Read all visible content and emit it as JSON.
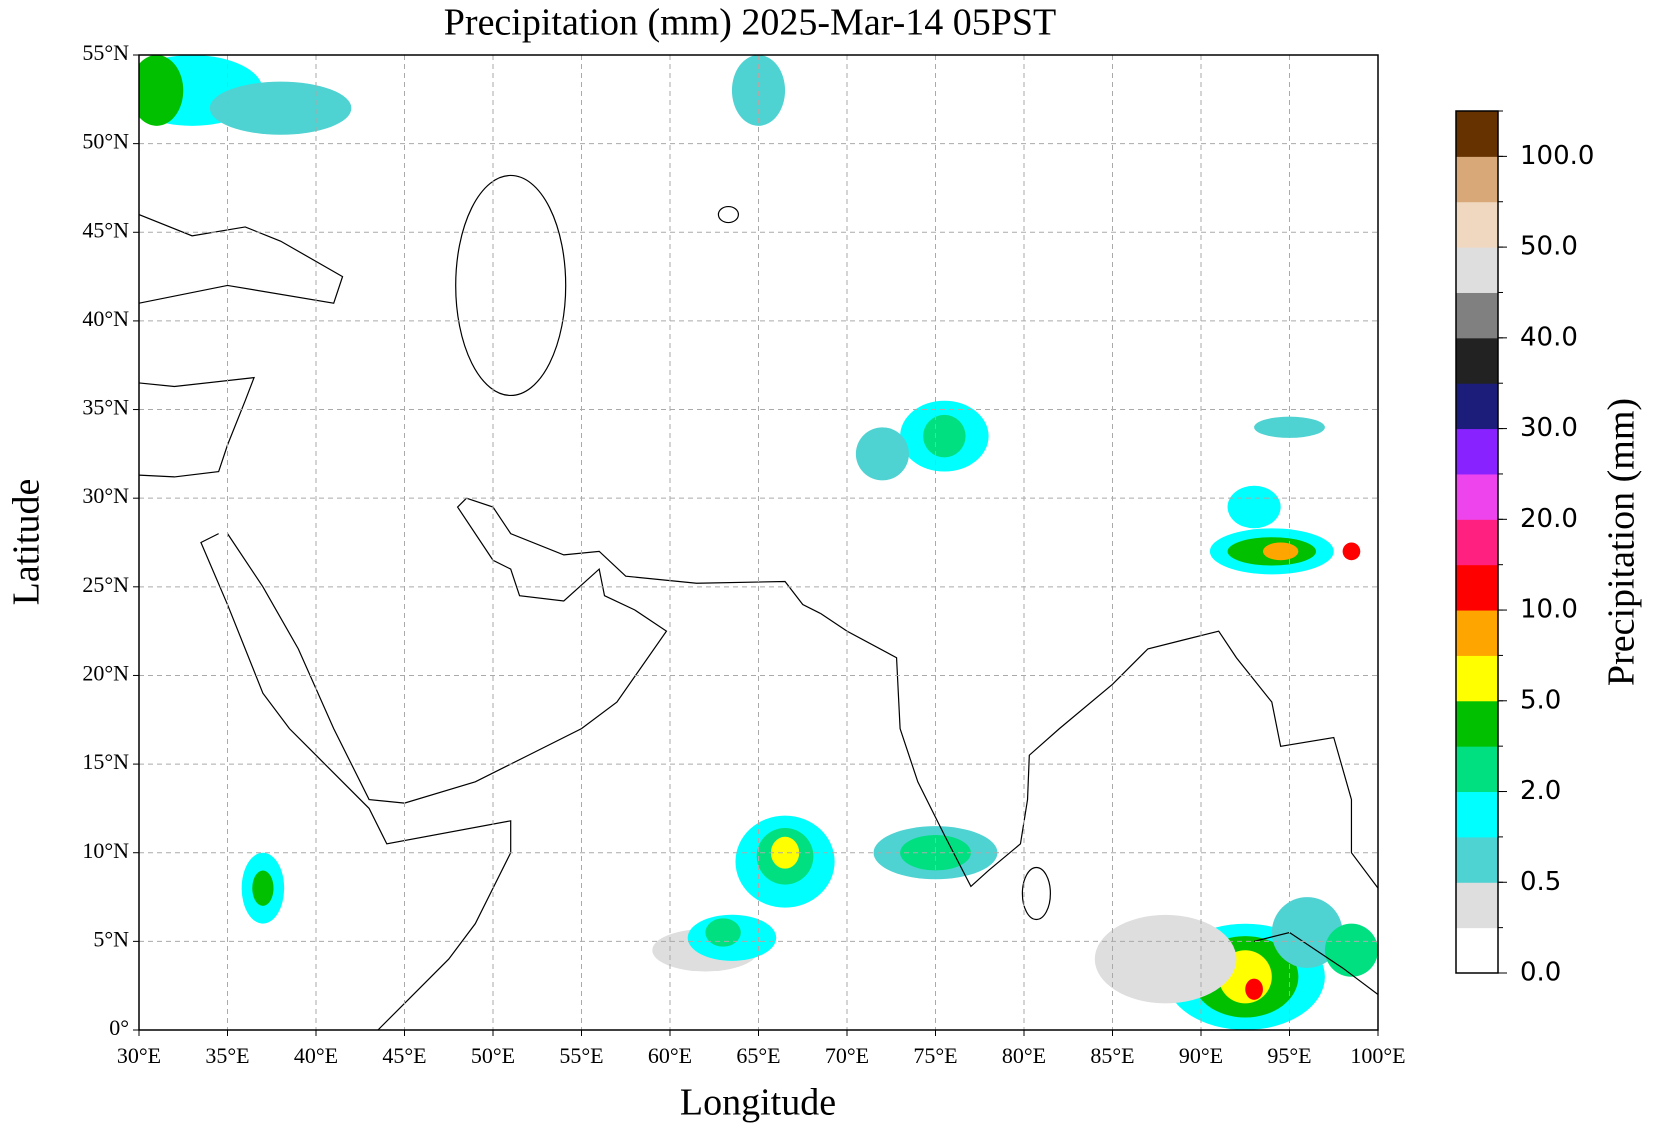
{
  "chart_data": {
    "type": "map",
    "title": "Precipitation (mm)  2025-Mar-14 05PST",
    "x_label": "Longitude",
    "y_label": "Latitude",
    "xlim": [
      30,
      100
    ],
    "ylim": [
      0,
      55
    ],
    "xticks": [
      {
        "value": 30,
        "label": "30°E"
      },
      {
        "value": 35,
        "label": "35°E"
      },
      {
        "value": 40,
        "label": "40°E"
      },
      {
        "value": 45,
        "label": "45°E"
      },
      {
        "value": 50,
        "label": "50°E"
      },
      {
        "value": 55,
        "label": "55°E"
      },
      {
        "value": 60,
        "label": "60°E"
      },
      {
        "value": 65,
        "label": "65°E"
      },
      {
        "value": 70,
        "label": "70°E"
      },
      {
        "value": 75,
        "label": "75°E"
      },
      {
        "value": 80,
        "label": "80°E"
      },
      {
        "value": 85,
        "label": "85°E"
      },
      {
        "value": 90,
        "label": "90°E"
      },
      {
        "value": 95,
        "label": "95°E"
      },
      {
        "value": 100,
        "label": "100°E"
      }
    ],
    "yticks": [
      {
        "value": 0,
        "label": "0°"
      },
      {
        "value": 5,
        "label": "5°N"
      },
      {
        "value": 10,
        "label": "10°N"
      },
      {
        "value": 15,
        "label": "15°N"
      },
      {
        "value": 20,
        "label": "20°N"
      },
      {
        "value": 25,
        "label": "25°N"
      },
      {
        "value": 30,
        "label": "30°N"
      },
      {
        "value": 35,
        "label": "35°N"
      },
      {
        "value": 40,
        "label": "40°N"
      },
      {
        "value": 45,
        "label": "45°N"
      },
      {
        "value": 50,
        "label": "50°N"
      },
      {
        "value": 55,
        "label": "55°N"
      }
    ],
    "grid": true,
    "colorbar": {
      "label": "Precipitation (mm)",
      "colors": [
        "#ffffff",
        "#dedede",
        "#4fd2d2",
        "#00ffff",
        "#00e080",
        "#00c000",
        "#ffff00",
        "#ffa500",
        "#ff0000",
        "#ff2080",
        "#ee44ee",
        "#8822ff",
        "#1c1c7a",
        "#222222",
        "#808080",
        "#dedede",
        "#f0d8c0",
        "#d8a878",
        "#663300"
      ],
      "ticks": [
        {
          "value": 0,
          "label": "0.0"
        },
        {
          "value": 0.5,
          "label": "0.5"
        },
        {
          "value": 2,
          "label": "2.0"
        },
        {
          "value": 5,
          "label": "5.0"
        },
        {
          "value": 10,
          "label": "10.0"
        },
        {
          "value": 20,
          "label": "20.0"
        },
        {
          "value": 30,
          "label": "30.0"
        },
        {
          "value": 40,
          "label": "40.0"
        },
        {
          "value": 50,
          "label": "50.0"
        },
        {
          "value": 100,
          "label": "100.0"
        }
      ]
    }
  }
}
